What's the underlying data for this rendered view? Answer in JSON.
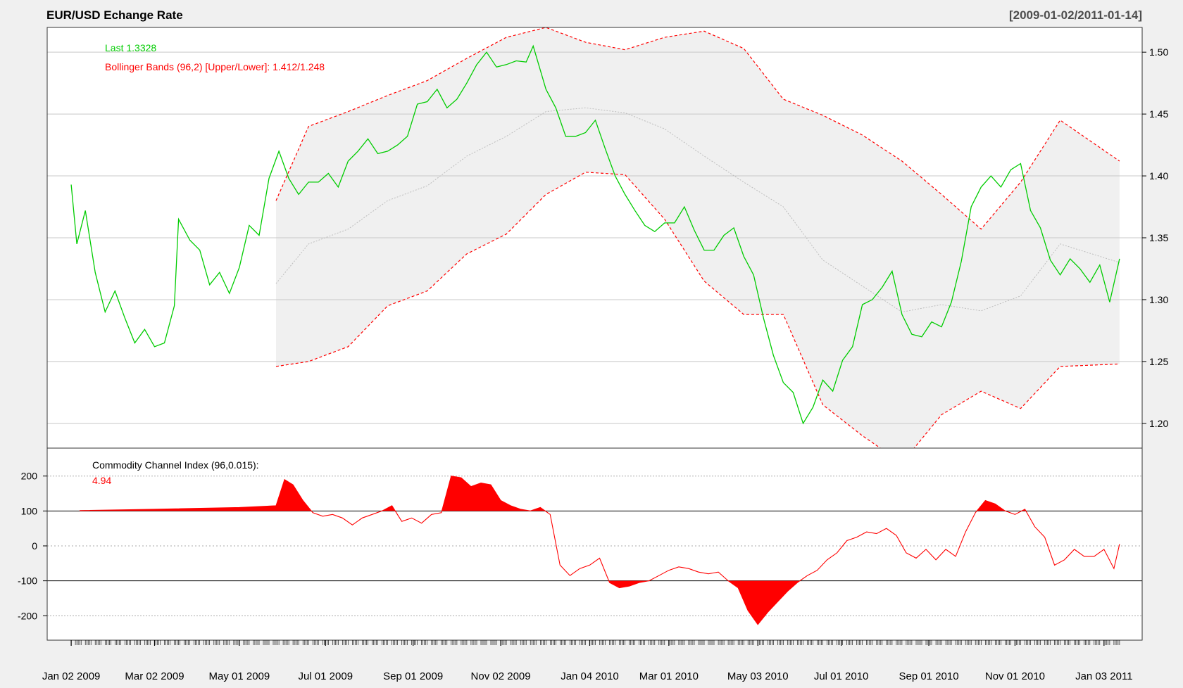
{
  "header": {
    "title": "EUR/USD Echange Rate",
    "date_range": "[2009-01-02/2011-01-14]"
  },
  "chart_data": [
    {
      "type": "line",
      "panel": "price",
      "legend": {
        "last_label": "Last 1.3328",
        "bands_label": "Bollinger Bands (96,2) [Upper/Lower]: 1.412/1.248"
      },
      "ylim": [
        1.18,
        1.52
      ],
      "y_ticks": [
        1.2,
        1.25,
        1.3,
        1.35,
        1.4,
        1.45,
        1.5
      ],
      "y_tick_labels": [
        "1.20",
        "1.25",
        "1.30",
        "1.35",
        "1.40",
        "1.45",
        "1.50"
      ],
      "grid": true,
      "colors": {
        "price": "#00cc00",
        "bands": "#ff0000",
        "mid": "#bdbdbd",
        "band_fill": "#f0f0f0"
      },
      "series": [
        {
          "key": "price",
          "x": [
            "2009-01-02",
            "2009-01-06",
            "2009-01-12",
            "2009-01-19",
            "2009-01-26",
            "2009-02-02",
            "2009-02-09",
            "2009-02-16",
            "2009-02-23",
            "2009-03-02",
            "2009-03-09",
            "2009-03-16",
            "2009-03-19",
            "2009-03-27",
            "2009-04-03",
            "2009-04-10",
            "2009-04-17",
            "2009-04-24",
            "2009-05-01",
            "2009-05-08",
            "2009-05-15",
            "2009-05-22",
            "2009-05-29",
            "2009-06-05",
            "2009-06-12",
            "2009-06-19",
            "2009-06-26",
            "2009-07-03",
            "2009-07-10",
            "2009-07-17",
            "2009-07-24",
            "2009-07-31",
            "2009-08-07",
            "2009-08-14",
            "2009-08-21",
            "2009-08-28",
            "2009-09-04",
            "2009-09-11",
            "2009-09-18",
            "2009-09-25",
            "2009-10-02",
            "2009-10-09",
            "2009-10-16",
            "2009-10-23",
            "2009-10-30",
            "2009-11-06",
            "2009-11-13",
            "2009-11-20",
            "2009-11-25",
            "2009-12-04",
            "2009-12-11",
            "2009-12-18",
            "2009-12-25",
            "2010-01-01",
            "2010-01-08",
            "2010-01-15",
            "2010-01-22",
            "2010-01-29",
            "2010-02-05",
            "2010-02-12",
            "2010-02-19",
            "2010-02-26",
            "2010-03-05",
            "2010-03-12",
            "2010-03-19",
            "2010-03-26",
            "2010-04-02",
            "2010-04-09",
            "2010-04-16",
            "2010-04-23",
            "2010-04-30",
            "2010-05-07",
            "2010-05-14",
            "2010-05-21",
            "2010-05-28",
            "2010-06-04",
            "2010-06-11",
            "2010-06-18",
            "2010-06-25",
            "2010-07-02",
            "2010-07-09",
            "2010-07-16",
            "2010-07-23",
            "2010-07-30",
            "2010-08-06",
            "2010-08-13",
            "2010-08-20",
            "2010-08-27",
            "2010-09-03",
            "2010-09-10",
            "2010-09-17",
            "2010-09-24",
            "2010-10-01",
            "2010-10-08",
            "2010-10-15",
            "2010-10-22",
            "2010-10-29",
            "2010-11-05",
            "2010-11-12",
            "2010-11-19",
            "2010-11-26",
            "2010-12-03",
            "2010-12-10",
            "2010-12-17",
            "2010-12-24",
            "2010-12-31",
            "2011-01-07",
            "2011-01-14"
          ],
          "values": [
            1.393,
            1.345,
            1.372,
            1.322,
            1.29,
            1.307,
            1.285,
            1.265,
            1.276,
            1.262,
            1.265,
            1.295,
            1.365,
            1.348,
            1.34,
            1.312,
            1.322,
            1.305,
            1.326,
            1.36,
            1.352,
            1.398,
            1.42,
            1.398,
            1.385,
            1.395,
            1.395,
            1.402,
            1.391,
            1.412,
            1.42,
            1.43,
            1.418,
            1.42,
            1.425,
            1.432,
            1.458,
            1.46,
            1.47,
            1.455,
            1.462,
            1.475,
            1.49,
            1.5,
            1.488,
            1.49,
            1.493,
            1.492,
            1.505,
            1.47,
            1.455,
            1.432,
            1.432,
            1.435,
            1.445,
            1.422,
            1.4,
            1.385,
            1.372,
            1.36,
            1.355,
            1.362,
            1.362,
            1.375,
            1.356,
            1.34,
            1.34,
            1.352,
            1.358,
            1.335,
            1.32,
            1.285,
            1.255,
            1.233,
            1.225,
            1.2,
            1.213,
            1.235,
            1.226,
            1.251,
            1.262,
            1.296,
            1.3,
            1.31,
            1.323,
            1.288,
            1.272,
            1.27,
            1.282,
            1.278,
            1.298,
            1.331,
            1.375,
            1.391,
            1.4,
            1.391,
            1.405,
            1.41,
            1.372,
            1.358,
            1.332,
            1.32,
            1.333,
            1.325,
            1.314,
            1.328,
            1.298,
            1.333
          ]
        },
        {
          "key": "upper",
          "x": [
            "2009-05-27",
            "2009-06-19",
            "2009-07-17",
            "2009-08-14",
            "2009-09-11",
            "2009-10-09",
            "2009-11-06",
            "2009-12-04",
            "2010-01-01",
            "2010-01-29",
            "2010-02-26",
            "2010-03-26",
            "2010-04-23",
            "2010-05-21",
            "2010-06-18",
            "2010-07-16",
            "2010-08-13",
            "2010-09-10",
            "2010-10-08",
            "2010-11-05",
            "2010-12-03",
            "2011-01-14"
          ],
          "values": [
            1.38,
            1.44,
            1.452,
            1.465,
            1.477,
            1.495,
            1.512,
            1.52,
            1.508,
            1.502,
            1.512,
            1.517,
            1.503,
            1.462,
            1.449,
            1.433,
            1.412,
            1.385,
            1.357,
            1.395,
            1.445,
            1.412
          ]
        },
        {
          "key": "lower",
          "x": [
            "2009-05-27",
            "2009-06-19",
            "2009-07-17",
            "2009-08-14",
            "2009-09-11",
            "2009-10-09",
            "2009-11-06",
            "2009-12-04",
            "2010-01-01",
            "2010-01-29",
            "2010-02-26",
            "2010-03-26",
            "2010-04-23",
            "2010-05-21",
            "2010-06-18",
            "2010-07-16",
            "2010-08-13",
            "2010-09-10",
            "2010-10-08",
            "2010-11-05",
            "2010-12-03",
            "2011-01-14"
          ],
          "values": [
            1.246,
            1.25,
            1.262,
            1.295,
            1.307,
            1.337,
            1.353,
            1.385,
            1.403,
            1.401,
            1.365,
            1.315,
            1.288,
            1.288,
            1.215,
            1.19,
            1.168,
            1.207,
            1.226,
            1.212,
            1.246,
            1.248
          ]
        },
        {
          "key": "mid",
          "x": [
            "2009-05-27",
            "2009-06-19",
            "2009-07-17",
            "2009-08-14",
            "2009-09-11",
            "2009-10-09",
            "2009-11-06",
            "2009-12-04",
            "2010-01-01",
            "2010-01-29",
            "2010-02-26",
            "2010-03-26",
            "2010-04-23",
            "2010-05-21",
            "2010-06-18",
            "2010-07-16",
            "2010-08-13",
            "2010-09-10",
            "2010-10-08",
            "2010-11-05",
            "2010-12-03",
            "2011-01-14"
          ],
          "values": [
            1.313,
            1.345,
            1.357,
            1.38,
            1.392,
            1.416,
            1.432,
            1.452,
            1.455,
            1.451,
            1.438,
            1.416,
            1.395,
            1.375,
            1.332,
            1.311,
            1.29,
            1.296,
            1.291,
            1.303,
            1.345,
            1.33
          ]
        }
      ]
    },
    {
      "type": "area",
      "panel": "cci",
      "title": "Commodity Channel Index (96,0.015):",
      "last_value": "4.94",
      "ylim": [
        -270,
        280
      ],
      "y_ticks": [
        -200,
        -100,
        0,
        100,
        200
      ],
      "y_tick_labels": [
        "-200",
        "-100",
        "0",
        "100",
        "200"
      ],
      "threshold_lines": [
        100,
        -100
      ],
      "colors": {
        "line": "#ff0000",
        "fill": "#ff0000"
      },
      "series": [
        {
          "name": "Commodity Channel Index (96,0.015)",
          "x": [
            "2009-01-08",
            "2009-03-02",
            "2009-05-01",
            "2009-05-27",
            "2009-06-02",
            "2009-06-08",
            "2009-06-15",
            "2009-06-22",
            "2009-06-29",
            "2009-07-06",
            "2009-07-13",
            "2009-07-20",
            "2009-07-27",
            "2009-08-03",
            "2009-08-10",
            "2009-08-17",
            "2009-08-24",
            "2009-08-31",
            "2009-09-07",
            "2009-09-14",
            "2009-09-21",
            "2009-09-28",
            "2009-10-05",
            "2009-10-12",
            "2009-10-19",
            "2009-10-26",
            "2009-11-02",
            "2009-11-09",
            "2009-11-16",
            "2009-11-23",
            "2009-11-30",
            "2009-12-07",
            "2009-12-14",
            "2009-12-21",
            "2009-12-28",
            "2010-01-04",
            "2010-01-11",
            "2010-01-18",
            "2010-01-25",
            "2010-02-01",
            "2010-02-08",
            "2010-02-15",
            "2010-02-22",
            "2010-03-01",
            "2010-03-08",
            "2010-03-15",
            "2010-03-22",
            "2010-03-29",
            "2010-04-05",
            "2010-04-12",
            "2010-04-19",
            "2010-04-26",
            "2010-05-03",
            "2010-05-10",
            "2010-05-17",
            "2010-05-24",
            "2010-05-31",
            "2010-06-07",
            "2010-06-14",
            "2010-06-21",
            "2010-06-28",
            "2010-07-05",
            "2010-07-12",
            "2010-07-19",
            "2010-07-26",
            "2010-08-02",
            "2010-08-09",
            "2010-08-16",
            "2010-08-23",
            "2010-08-30",
            "2010-09-06",
            "2010-09-13",
            "2010-09-20",
            "2010-09-27",
            "2010-10-04",
            "2010-10-11",
            "2010-10-18",
            "2010-10-25",
            "2010-11-01",
            "2010-11-08",
            "2010-11-15",
            "2010-11-22",
            "2010-11-29",
            "2010-12-06",
            "2010-12-13",
            "2010-12-20",
            "2010-12-27",
            "2011-01-03",
            "2011-01-10",
            "2011-01-14"
          ],
          "values": [
            101,
            105,
            110,
            115,
            190,
            175,
            130,
            95,
            85,
            90,
            80,
            60,
            80,
            90,
            100,
            115,
            70,
            80,
            65,
            90,
            95,
            200,
            195,
            170,
            180,
            175,
            130,
            115,
            105,
            100,
            110,
            90,
            -55,
            -85,
            -65,
            -55,
            -35,
            -105,
            -120,
            -115,
            -105,
            -100,
            -85,
            -70,
            -60,
            -65,
            -75,
            -80,
            -75,
            -100,
            -120,
            -185,
            -225,
            -190,
            -160,
            -130,
            -105,
            -85,
            -70,
            -40,
            -20,
            15,
            25,
            40,
            35,
            50,
            30,
            -20,
            -35,
            -10,
            -40,
            -10,
            -30,
            40,
            95,
            130,
            120,
            100,
            90,
            105,
            55,
            25,
            -55,
            -40,
            -10,
            -30,
            -30,
            -10,
            -65,
            4.94
          ]
        }
      ]
    },
    {
      "type": "line",
      "panel": "x-axis",
      "x_tick_labels": [
        "Jan 02 2009",
        "Mar 02 2009",
        "May 01 2009",
        "Jul 01 2009",
        "Sep 01 2009",
        "Nov 02 2009",
        "Jan 04 2010",
        "Mar 01 2010",
        "May 03 2010",
        "Jul 01 2010",
        "Sep 01 2010",
        "Nov 01 2010",
        "Jan 03 2011"
      ],
      "x_tick_dates": [
        "2009-01-02",
        "2009-03-02",
        "2009-05-01",
        "2009-07-01",
        "2009-09-01",
        "2009-11-02",
        "2010-01-04",
        "2010-03-01",
        "2010-05-03",
        "2010-07-01",
        "2010-09-01",
        "2010-11-01",
        "2011-01-03"
      ],
      "x_range": [
        "2008-12-16",
        "2011-01-30"
      ]
    }
  ]
}
